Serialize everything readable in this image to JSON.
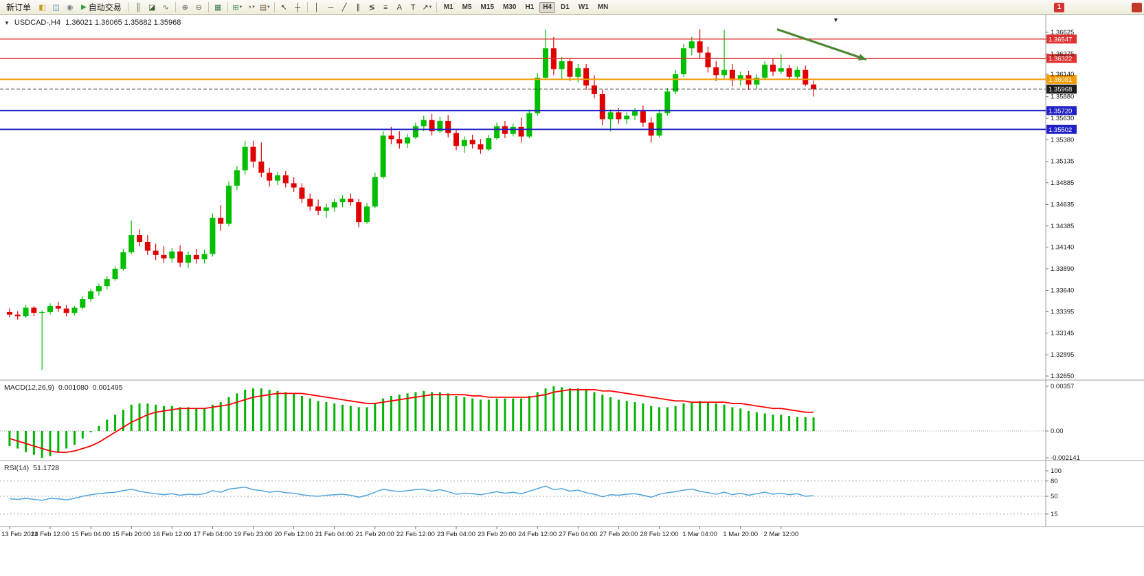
{
  "icons": {
    "symbol_dropdown": "▼",
    "dropdown_caret": "▾",
    "chart_shift_marker": "▼"
  },
  "toolbar": {
    "timeframes": [
      "M1",
      "M5",
      "M15",
      "M30",
      "H1",
      "H4",
      "D1",
      "W1",
      "MN"
    ],
    "active_timeframe": "H4",
    "items": [
      {
        "kind": "text",
        "name": "new-order-button",
        "label": "新订单",
        "glyph": "",
        "color": ""
      },
      {
        "kind": "icon",
        "name": "new-chart-icon",
        "glyph": "◧",
        "color": "#c9971f"
      },
      {
        "kind": "icon",
        "name": "market-watch-icon",
        "glyph": "◫",
        "color": "#3b6fb5"
      },
      {
        "kind": "icon",
        "name": "refresh-icon",
        "glyph": "◉",
        "color": "#6f8190"
      },
      {
        "kind": "text",
        "name": "autotrading-button",
        "label": "自动交易",
        "glyph": "▶",
        "color": "#2e9e3f"
      },
      {
        "kind": "sep"
      },
      {
        "kind": "icon",
        "name": "bar-chart-icon",
        "glyph": "║",
        "color": "#44663a"
      },
      {
        "kind": "icon",
        "name": "candlestick-chart-icon",
        "glyph": "◪",
        "color": "#3f5f2f"
      },
      {
        "kind": "icon",
        "name": "line-chart-icon",
        "glyph": "∿",
        "color": "#44663a"
      },
      {
        "kind": "sep"
      },
      {
        "kind": "icon",
        "name": "zoom-in-icon",
        "glyph": "⊕",
        "color": "#54585c"
      },
      {
        "kind": "icon",
        "name": "zoom-out-icon",
        "glyph": "⊖",
        "color": "#54585c"
      },
      {
        "kind": "sep"
      },
      {
        "kind": "icon",
        "name": "tile-windows-icon",
        "glyph": "▦",
        "color": "#3e7d46"
      },
      {
        "kind": "sep"
      },
      {
        "kind": "icon",
        "name": "indicators-icon",
        "glyph": "⊞",
        "color": "#2e8b57",
        "dropdown": true
      },
      {
        "kind": "icon",
        "name": "periods-icon",
        "glyph": "◔",
        "color": "#54585c",
        "dropdown": true
      },
      {
        "kind": "icon",
        "name": "templates-icon",
        "glyph": "▤",
        "color": "#6b5b3e",
        "dropdown": true
      },
      {
        "kind": "sep"
      },
      {
        "kind": "icon",
        "name": "cursor-icon",
        "glyph": "↖",
        "color": "#333333"
      },
      {
        "kind": "icon",
        "name": "crosshair-icon",
        "glyph": "┼",
        "color": "#333333"
      },
      {
        "kind": "sep"
      },
      {
        "kind": "icon",
        "name": "vertical-line-icon",
        "glyph": "│",
        "color": "#333333"
      },
      {
        "kind": "icon",
        "name": "horizontal-line-icon",
        "glyph": "─",
        "color": "#333333"
      },
      {
        "kind": "icon",
        "name": "trendline-icon",
        "glyph": "╱",
        "color": "#333333"
      },
      {
        "kind": "icon",
        "name": "channel-icon",
        "glyph": "∥",
        "color": "#333333"
      },
      {
        "kind": "icon",
        "name": "fibonacci-icon",
        "glyph": "≶",
        "color": "#333333"
      },
      {
        "kind": "icon",
        "name": "shapes-icon",
        "glyph": "≡",
        "color": "#333333"
      },
      {
        "kind": "icon",
        "name": "text-icon",
        "glyph": "A",
        "color": "#333333"
      },
      {
        "kind": "icon",
        "name": "label-icon",
        "glyph": "T",
        "color": "#333333"
      },
      {
        "kind": "icon",
        "name": "arrows-icon",
        "glyph": "↗",
        "color": "#333333",
        "dropdown": true
      },
      {
        "kind": "sep"
      },
      {
        "kind": "timeframes"
      },
      {
        "kind": "spacer"
      },
      {
        "kind": "badge",
        "name": "notification-badge",
        "label": "1",
        "color": "#d63030"
      },
      {
        "kind": "gap",
        "w": 96
      },
      {
        "kind": "badge",
        "name": "edge-notification-badge",
        "label": "",
        "color": "#c0392b"
      }
    ]
  },
  "chart_header": {
    "symbol": "USDCAD-,H4",
    "ohlc": "1.36021 1.36065 1.35882 1.35968"
  },
  "indicators": {
    "macd": {
      "name": "MACD(12,26,9)",
      "value1": "0.001080",
      "value2": "0.001495"
    },
    "rsi": {
      "name": "RSI(14)",
      "value": "51.1728"
    }
  },
  "chart_data": {
    "type": "candlestick+indicators",
    "symbol": "USDCAD",
    "timeframe": "H4",
    "ylim": [
      1.3261,
      1.367
    ],
    "colors": {
      "bull": "#00be00",
      "bear": "#e00000",
      "macd_hist": "#00b400",
      "macd_signal": "#ff0000",
      "rsi": "#4fa3dc"
    },
    "price_axis_labels": [
      "1.36625",
      "1.36375",
      "1.36140",
      "1.35880",
      "1.35630",
      "1.35380",
      "1.35135",
      "1.34885",
      "1.34635",
      "1.34385",
      "1.34140",
      "1.33890",
      "1.33640",
      "1.33395",
      "1.33145",
      "1.32895",
      "1.32650"
    ],
    "levels": [
      {
        "text": "1.36547",
        "price": 1.36547,
        "color": "#e03131",
        "style": "solid",
        "width": 1.4
      },
      {
        "text": "1.36322",
        "price": 1.36322,
        "color": "#e03131",
        "style": "solid",
        "width": 1.4
      },
      {
        "text": "1.36081",
        "price": 1.36081,
        "color": "#f59b00",
        "style": "solid",
        "width": 2
      },
      {
        "text": "1.35968",
        "price": 1.35968,
        "color": "#1a1a1a",
        "style": "dashed",
        "width": 1
      },
      {
        "text": "1.35720",
        "price": 1.3572,
        "color": "#2020c8",
        "style": "solid",
        "width": 2
      },
      {
        "text": "1.35502",
        "price": 1.35502,
        "color": "#2020c8",
        "style": "solid",
        "width": 2
      }
    ],
    "annotation_arrow": {
      "from_index": 94.5,
      "from_price": 1.3666,
      "to_index": 105.5,
      "to_price": 1.3631,
      "color": "#4e8530"
    },
    "time_labels": [
      "13 Feb 2023",
      "14 Feb 12:00",
      "15 Feb 04:00",
      "15 Feb 20:00",
      "16 Feb 12:00",
      "17 Feb 04:00",
      "19 Feb 23:00",
      "20 Feb 12:00",
      "21 Feb 04:00",
      "21 Feb 20:00",
      "22 Feb 12:00",
      "23 Feb 04:00",
      "23 Feb 20:00",
      "24 Feb 12:00",
      "27 Feb 04:00",
      "27 Feb 20:00",
      "28 Feb 12:00",
      "1 Mar 04:00",
      "1 Mar 20:00",
      "2 Mar 12:00"
    ],
    "candles": [
      [
        1.3339,
        1.3343,
        1.3333,
        1.3336
      ],
      [
        1.3336,
        1.334,
        1.333,
        1.3334
      ],
      [
        1.3334,
        1.3347,
        1.3332,
        1.3344
      ],
      [
        1.3344,
        1.3346,
        1.3334,
        1.3338
      ],
      [
        1.3338,
        1.3341,
        1.3272,
        1.3339
      ],
      [
        1.3339,
        1.3349,
        1.3336,
        1.3346
      ],
      [
        1.3346,
        1.3351,
        1.3339,
        1.3343
      ],
      [
        1.3343,
        1.3347,
        1.3334,
        1.3338
      ],
      [
        1.3338,
        1.3346,
        1.3335,
        1.3344
      ],
      [
        1.3344,
        1.3357,
        1.3342,
        1.3354
      ],
      [
        1.3354,
        1.3366,
        1.3351,
        1.3363
      ],
      [
        1.3363,
        1.3372,
        1.3358,
        1.3369
      ],
      [
        1.3369,
        1.338,
        1.3365,
        1.3377
      ],
      [
        1.3377,
        1.3392,
        1.3375,
        1.3389
      ],
      [
        1.3389,
        1.3412,
        1.3387,
        1.3408
      ],
      [
        1.3408,
        1.3445,
        1.3406,
        1.3428
      ],
      [
        1.3428,
        1.3435,
        1.3415,
        1.342
      ],
      [
        1.342,
        1.3428,
        1.3405,
        1.341
      ],
      [
        1.341,
        1.3418,
        1.3399,
        1.3405
      ],
      [
        1.3405,
        1.3415,
        1.3396,
        1.3401
      ],
      [
        1.3401,
        1.3413,
        1.3396,
        1.3409
      ],
      [
        1.3409,
        1.3416,
        1.3391,
        1.3396
      ],
      [
        1.3396,
        1.3409,
        1.339,
        1.3405
      ],
      [
        1.3405,
        1.3412,
        1.3395,
        1.34
      ],
      [
        1.34,
        1.3411,
        1.3395,
        1.3406
      ],
      [
        1.3406,
        1.3453,
        1.3403,
        1.3448
      ],
      [
        1.3448,
        1.3463,
        1.3433,
        1.3441
      ],
      [
        1.3441,
        1.349,
        1.3438,
        1.3485
      ],
      [
        1.3485,
        1.3508,
        1.348,
        1.3503
      ],
      [
        1.3503,
        1.3537,
        1.3498,
        1.353
      ],
      [
        1.353,
        1.3537,
        1.3506,
        1.3513
      ],
      [
        1.3513,
        1.3535,
        1.3495,
        1.35
      ],
      [
        1.35,
        1.3506,
        1.3484,
        1.3491
      ],
      [
        1.3491,
        1.3501,
        1.3486,
        1.3497
      ],
      [
        1.3497,
        1.3502,
        1.3483,
        1.3488
      ],
      [
        1.3488,
        1.3495,
        1.3478,
        1.3483
      ],
      [
        1.3483,
        1.3488,
        1.3465,
        1.347
      ],
      [
        1.347,
        1.3476,
        1.3456,
        1.3461
      ],
      [
        1.3461,
        1.3469,
        1.3451,
        1.3456
      ],
      [
        1.3456,
        1.3464,
        1.3448,
        1.346
      ],
      [
        1.346,
        1.347,
        1.3455,
        1.3466
      ],
      [
        1.3466,
        1.3474,
        1.346,
        1.347
      ],
      [
        1.347,
        1.3476,
        1.3462,
        1.3466
      ],
      [
        1.3466,
        1.347,
        1.3437,
        1.3443
      ],
      [
        1.3443,
        1.3465,
        1.3441,
        1.3461
      ],
      [
        1.3461,
        1.35,
        1.3459,
        1.3495
      ],
      [
        1.3495,
        1.3548,
        1.3493,
        1.3543
      ],
      [
        1.3543,
        1.3553,
        1.3533,
        1.3539
      ],
      [
        1.3539,
        1.3548,
        1.3528,
        1.3534
      ],
      [
        1.3534,
        1.3545,
        1.3529,
        1.3541
      ],
      [
        1.3541,
        1.3558,
        1.3539,
        1.3554
      ],
      [
        1.3554,
        1.3566,
        1.3548,
        1.3561
      ],
      [
        1.3561,
        1.3568,
        1.3543,
        1.3548
      ],
      [
        1.3548,
        1.3565,
        1.3546,
        1.356
      ],
      [
        1.356,
        1.3567,
        1.3541,
        1.3546
      ],
      [
        1.3546,
        1.3551,
        1.3526,
        1.3531
      ],
      [
        1.3531,
        1.3542,
        1.3523,
        1.3538
      ],
      [
        1.3538,
        1.3544,
        1.3528,
        1.3533
      ],
      [
        1.3533,
        1.3539,
        1.3522,
        1.3527
      ],
      [
        1.3527,
        1.3544,
        1.3525,
        1.354
      ],
      [
        1.354,
        1.3558,
        1.3538,
        1.3554
      ],
      [
        1.3554,
        1.356,
        1.354,
        1.3545
      ],
      [
        1.3545,
        1.3557,
        1.3542,
        1.3553
      ],
      [
        1.3553,
        1.3564,
        1.3535,
        1.3542
      ],
      [
        1.3542,
        1.3573,
        1.354,
        1.3569
      ],
      [
        1.3569,
        1.3615,
        1.3566,
        1.361
      ],
      [
        1.361,
        1.3666,
        1.3607,
        1.3644
      ],
      [
        1.3644,
        1.3657,
        1.3613,
        1.362
      ],
      [
        1.362,
        1.3634,
        1.3609,
        1.3629
      ],
      [
        1.3629,
        1.3633,
        1.3606,
        1.3611
      ],
      [
        1.3611,
        1.3626,
        1.3604,
        1.3621
      ],
      [
        1.3621,
        1.3626,
        1.3596,
        1.3601
      ],
      [
        1.3601,
        1.3613,
        1.3586,
        1.3591
      ],
      [
        1.3591,
        1.3596,
        1.3555,
        1.3562
      ],
      [
        1.3562,
        1.3573,
        1.3548,
        1.357
      ],
      [
        1.357,
        1.3575,
        1.3557,
        1.3562
      ],
      [
        1.3562,
        1.357,
        1.3556,
        1.3566
      ],
      [
        1.3566,
        1.3575,
        1.3561,
        1.3571
      ],
      [
        1.3571,
        1.3578,
        1.3553,
        1.3558
      ],
      [
        1.3558,
        1.3564,
        1.3535,
        1.3543
      ],
      [
        1.3543,
        1.3573,
        1.3541,
        1.3569
      ],
      [
        1.3569,
        1.3598,
        1.3566,
        1.3594
      ],
      [
        1.3594,
        1.3619,
        1.3591,
        1.3614
      ],
      [
        1.3614,
        1.3649,
        1.3611,
        1.3644
      ],
      [
        1.3644,
        1.3657,
        1.3636,
        1.3652
      ],
      [
        1.3652,
        1.3666,
        1.3632,
        1.3639
      ],
      [
        1.3639,
        1.3646,
        1.3616,
        1.3622
      ],
      [
        1.3622,
        1.3629,
        1.3606,
        1.3613
      ],
      [
        1.3613,
        1.3665,
        1.3609,
        1.3619
      ],
      [
        1.3619,
        1.3626,
        1.36,
        1.3607
      ],
      [
        1.3607,
        1.3617,
        1.3601,
        1.3613
      ],
      [
        1.3613,
        1.3618,
        1.3596,
        1.3602
      ],
      [
        1.3602,
        1.3614,
        1.3597,
        1.361
      ],
      [
        1.361,
        1.3629,
        1.3607,
        1.3625
      ],
      [
        1.3625,
        1.3632,
        1.3612,
        1.3617
      ],
      [
        1.3617,
        1.3637,
        1.3614,
        1.3621
      ],
      [
        1.3621,
        1.3625,
        1.3607,
        1.3611
      ],
      [
        1.3611,
        1.3623,
        1.3608,
        1.3619
      ],
      [
        1.3619,
        1.3624,
        1.36,
        1.36021
      ],
      [
        1.36021,
        1.36065,
        1.35882,
        1.35968
      ]
    ],
    "macd": {
      "label": "MACD(12,26,9)",
      "current_main": "0.001080",
      "current_signal": "0.001495",
      "scale_labels": [
        "0.00357",
        "0.00",
        "-0.002141"
      ],
      "scale_max": 0.00357,
      "scale_min": -0.002141,
      "histogram": [
        -0.0012,
        -0.0014,
        -0.0017,
        -0.0019,
        -0.002141,
        -0.002,
        -0.0017,
        -0.0014,
        -0.0011,
        -0.0006,
        -0.0001,
        0.0004,
        0.0009,
        0.0013,
        0.0017,
        0.0021,
        0.0022,
        0.0022,
        0.0021,
        0.002,
        0.002,
        0.0019,
        0.0019,
        0.0018,
        0.0018,
        0.0021,
        0.0023,
        0.0027,
        0.003,
        0.0033,
        0.0034,
        0.0034,
        0.0033,
        0.0032,
        0.0031,
        0.003,
        0.0028,
        0.0026,
        0.0024,
        0.0023,
        0.0022,
        0.0021,
        0.002,
        0.0019,
        0.0019,
        0.0022,
        0.0026,
        0.0028,
        0.0029,
        0.003,
        0.0031,
        0.0032,
        0.0031,
        0.0031,
        0.003,
        0.0028,
        0.0027,
        0.0026,
        0.0025,
        0.0025,
        0.0026,
        0.0026,
        0.0026,
        0.0026,
        0.0028,
        0.0031,
        0.0034,
        0.00357,
        0.0035,
        0.0034,
        0.0034,
        0.0033,
        0.0031,
        0.0029,
        0.0027,
        0.0025,
        0.0024,
        0.0023,
        0.0022,
        0.002,
        0.0019,
        0.0019,
        0.002,
        0.0022,
        0.0023,
        0.0024,
        0.0023,
        0.0022,
        0.0021,
        0.0019,
        0.0018,
        0.0016,
        0.0015,
        0.0014,
        0.0013,
        0.0013,
        0.0012,
        0.0011,
        0.0011,
        0.00108
      ],
      "signal": [
        -0.0006,
        -0.0008,
        -0.001,
        -0.0012,
        -0.0014,
        -0.0016,
        -0.0017,
        -0.0017,
        -0.0016,
        -0.0014,
        -0.0012,
        -0.0009,
        -0.0005,
        -0.0001,
        0.0003,
        0.0007,
        0.001,
        0.0013,
        0.0015,
        0.0016,
        0.0017,
        0.0018,
        0.0018,
        0.0018,
        0.0018,
        0.0019,
        0.002,
        0.0021,
        0.0023,
        0.0025,
        0.0027,
        0.0028,
        0.0029,
        0.003,
        0.003,
        0.003,
        0.003,
        0.0029,
        0.0028,
        0.0027,
        0.0026,
        0.0025,
        0.0024,
        0.0023,
        0.0022,
        0.0022,
        0.0023,
        0.0024,
        0.0025,
        0.0026,
        0.0027,
        0.0028,
        0.0029,
        0.0029,
        0.0029,
        0.0029,
        0.0029,
        0.0028,
        0.0028,
        0.0027,
        0.0027,
        0.0027,
        0.0027,
        0.0027,
        0.0027,
        0.0028,
        0.0029,
        0.0031,
        0.0032,
        0.0033,
        0.0033,
        0.0033,
        0.0033,
        0.0032,
        0.0032,
        0.0031,
        0.003,
        0.0029,
        0.0028,
        0.0027,
        0.0026,
        0.0025,
        0.0024,
        0.0024,
        0.0023,
        0.0023,
        0.0023,
        0.0023,
        0.0023,
        0.0022,
        0.0022,
        0.0021,
        0.002,
        0.0019,
        0.0018,
        0.0018,
        0.0017,
        0.0016,
        0.0015,
        0.001495
      ]
    },
    "rsi": {
      "label": "RSI(14)",
      "current": "51.1728",
      "levels": [
        "100",
        "80",
        "50",
        "15"
      ],
      "level_lines": [
        80,
        50,
        15
      ],
      "series": [
        45,
        44,
        46,
        44,
        42,
        46,
        45,
        43,
        46,
        50,
        53,
        55,
        57,
        58,
        61,
        64,
        60,
        57,
        55,
        53,
        55,
        52,
        54,
        53,
        55,
        61,
        58,
        64,
        66,
        68,
        63,
        61,
        58,
        60,
        57,
        56,
        53,
        51,
        50,
        52,
        53,
        54,
        52,
        48,
        52,
        58,
        64,
        61,
        59,
        61,
        63,
        64,
        60,
        63,
        59,
        54,
        56,
        55,
        53,
        56,
        59,
        56,
        58,
        55,
        60,
        65,
        70,
        63,
        65,
        60,
        62,
        57,
        54,
        49,
        53,
        52,
        54,
        55,
        52,
        48,
        54,
        57,
        59,
        62,
        64,
        60,
        57,
        54,
        58,
        53,
        56,
        52,
        55,
        58,
        54,
        56,
        53,
        55,
        50,
        51.17
      ]
    }
  }
}
